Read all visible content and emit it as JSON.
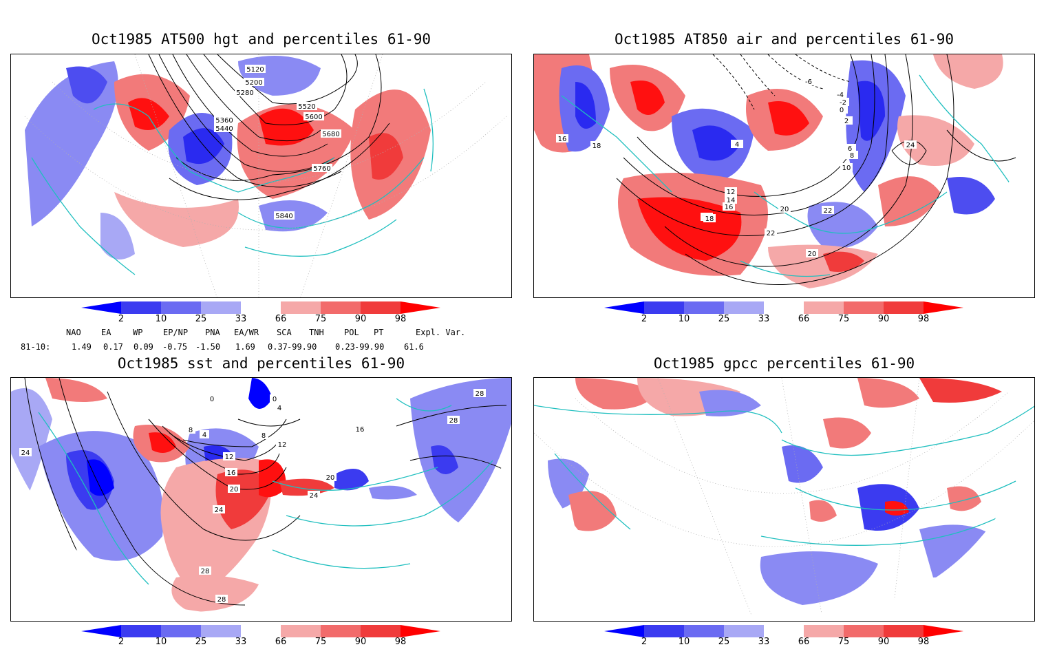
{
  "panels": {
    "hgt": {
      "title": "Oct1985 AT500 hgt and percentiles 61-90",
      "contour_labels": [
        "5120",
        "5200",
        "5280",
        "5360",
        "5440",
        "5520",
        "5600",
        "5680",
        "5760",
        "5840"
      ]
    },
    "air": {
      "title": "Oct1985 AT850 air and percentiles 61-90",
      "contour_labels": [
        "-6",
        "-4",
        "-2",
        "0",
        "2",
        "4",
        "6",
        "8",
        "10",
        "12",
        "14",
        "16",
        "18",
        "20",
        "22",
        "24",
        "16",
        "18",
        "18",
        "20",
        "22"
      ]
    },
    "sst": {
      "title": "Oct1985 sst and percentiles 61-90",
      "contour_labels": [
        "0",
        "0",
        "4",
        "4",
        "8",
        "8",
        "12",
        "12",
        "16",
        "16",
        "20",
        "20",
        "24",
        "24",
        "28",
        "28",
        "28",
        "28",
        "24"
      ]
    },
    "gpcc": {
      "title": "Oct1985 gpcc percentiles 61-90"
    }
  },
  "colorbar": {
    "ticks": [
      "2",
      "10",
      "25",
      "33",
      "66",
      "75",
      "90",
      "98"
    ],
    "colors": [
      "#0000ff",
      "#3b3bf0",
      "#6b6bf2",
      "#a8a8f5",
      "#ffffff",
      "#f5a8a8",
      "#f26b6b",
      "#f03b3b",
      "#ff0000"
    ]
  },
  "indices": {
    "headers": [
      "NAO",
      "EA",
      "WP",
      "EP/NP",
      "PNA",
      "EA/WR",
      "SCA",
      "TNH",
      "POL",
      "PT",
      "Expl. Var."
    ],
    "row_label": "81-10:",
    "values": [
      "1.49",
      "0.17",
      "0.09",
      "-0.75",
      "-1.50",
      "1.69",
      "0.37",
      "-99.90",
      "0.23",
      "-99.90",
      "61.6"
    ]
  },
  "colors": {
    "coast": "#1fbfbf",
    "contour": "#000000",
    "grid": "#a0a0a0"
  }
}
